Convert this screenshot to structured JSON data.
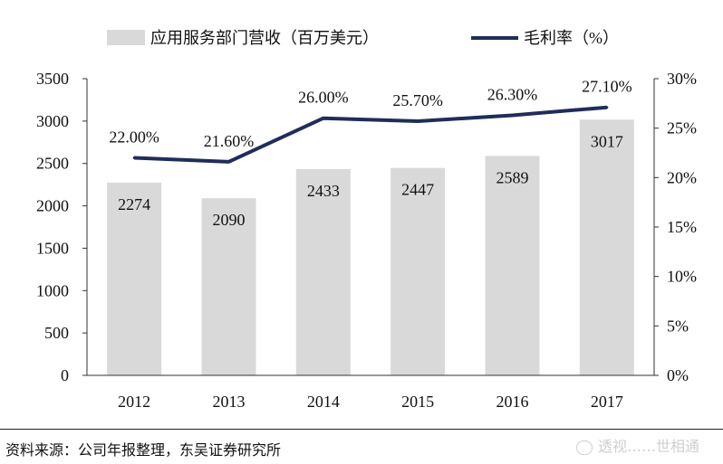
{
  "chart_data": {
    "type": "bar+line",
    "categories": [
      "2012",
      "2013",
      "2014",
      "2015",
      "2016",
      "2017"
    ],
    "series": [
      {
        "name": "应用服务部门营收（百万美元）",
        "type": "bar",
        "axis": "left",
        "color": "#d9d9d9",
        "values": [
          2274,
          2090,
          2433,
          2447,
          2589,
          3017
        ],
        "labels": [
          "2274",
          "2090",
          "2433",
          "2447",
          "2589",
          "3017"
        ]
      },
      {
        "name": "毛利率（%）",
        "type": "line",
        "axis": "right",
        "color": "#1f2d5a",
        "values": [
          22.0,
          21.6,
          26.0,
          25.7,
          26.3,
          27.1
        ],
        "labels": [
          "22.00%",
          "21.60%",
          "26.00%",
          "25.70%",
          "26.30%",
          "27.10%"
        ]
      }
    ],
    "y_left": {
      "ylim": [
        0,
        3500
      ],
      "ticks": [
        "0",
        "500",
        "1000",
        "1500",
        "2000",
        "2500",
        "3000",
        "3500"
      ]
    },
    "y_right": {
      "ylim": [
        0,
        30
      ],
      "ticks": [
        "0%",
        "5%",
        "10%",
        "15%",
        "20%",
        "25%",
        "30%"
      ]
    },
    "legend_position": "top",
    "grid": false
  },
  "source": "资料来源：公司年报整理，东吴证券研究所",
  "watermark": "透视……世相通"
}
